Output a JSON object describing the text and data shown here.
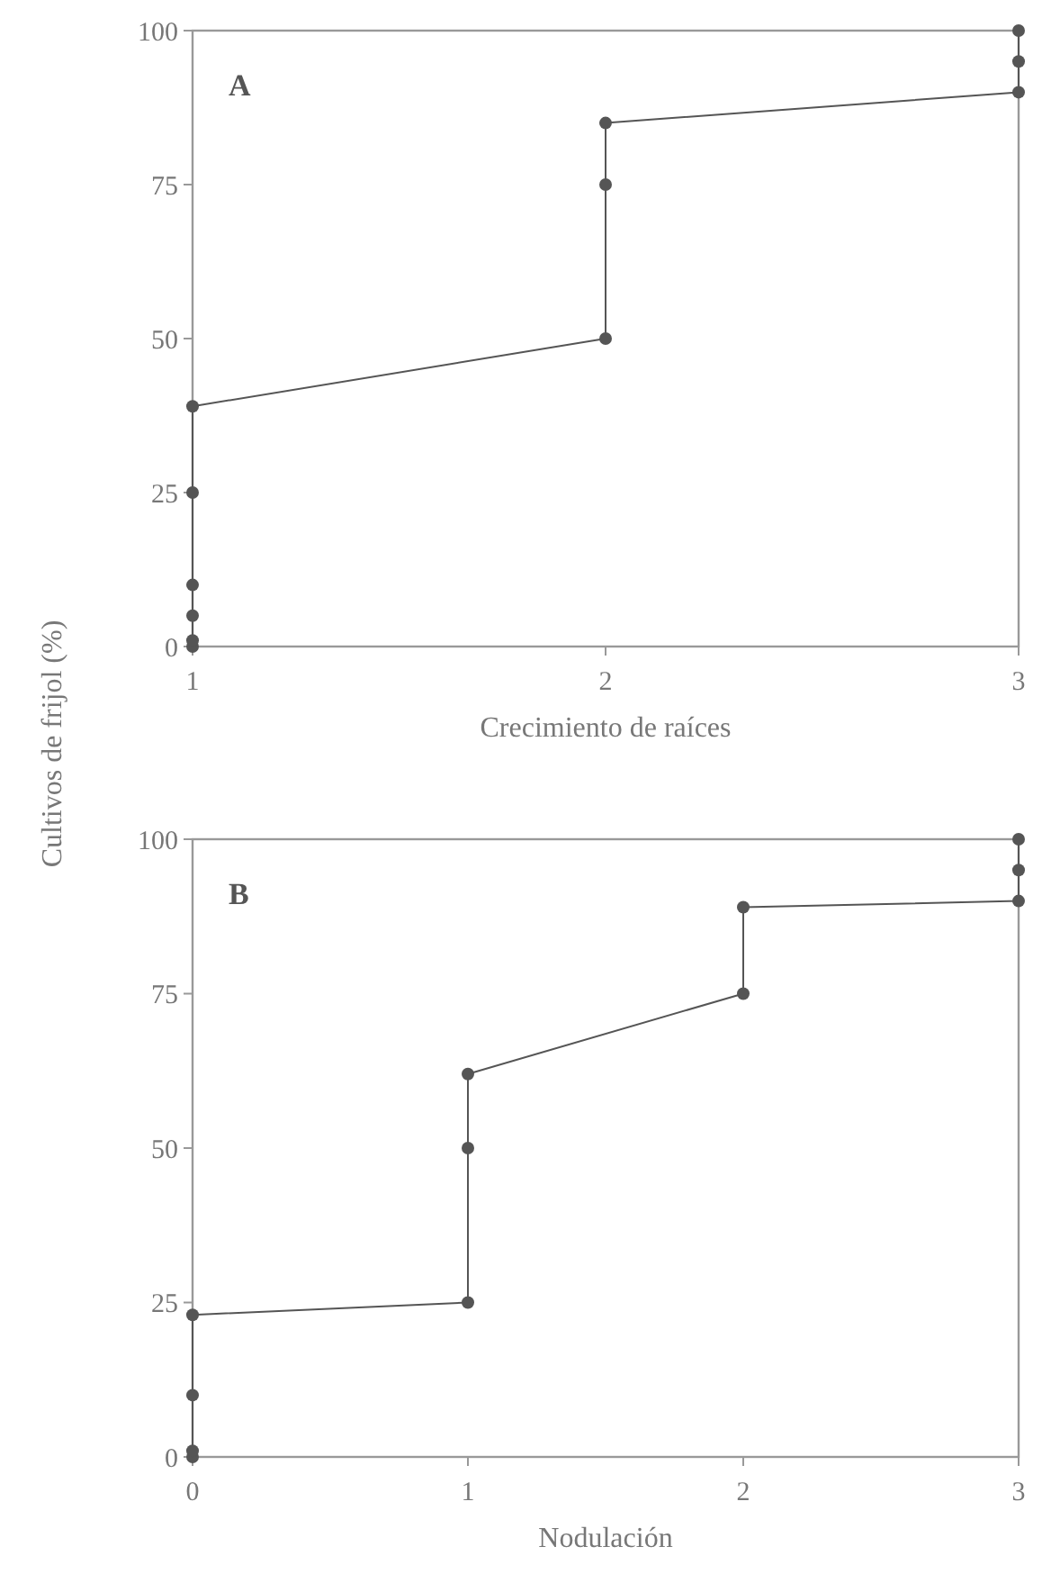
{
  "chart_data": [
    {
      "type": "line",
      "xlabel": "Crecimiento de raíces",
      "ylabel": "Cultivos de frijol (%)",
      "annotations": [
        "A"
      ],
      "marker": "circle",
      "line_style": "solid",
      "grid": false,
      "xlim": [
        1,
        3
      ],
      "xticks": [
        1,
        2,
        3
      ],
      "ylim": [
        0,
        100
      ],
      "yticks": [
        0,
        25,
        50,
        75,
        100
      ],
      "series": [
        {
          "color": "#555555",
          "x": [
            1,
            1,
            1,
            1,
            1,
            1,
            2,
            2,
            2,
            3,
            3,
            3
          ],
          "values": [
            0,
            1,
            5,
            10,
            25,
            39,
            50,
            75,
            85,
            90,
            95,
            100
          ]
        }
      ]
    },
    {
      "type": "line",
      "xlabel": "Nodulación",
      "annotations": [
        "B"
      ],
      "marker": "circle",
      "line_style": "solid",
      "grid": false,
      "xlim": [
        0,
        3
      ],
      "xticks": [
        0,
        1,
        2,
        3
      ],
      "ylim": [
        0,
        100
      ],
      "yticks": [
        0,
        25,
        50,
        75,
        100
      ],
      "series": [
        {
          "color": "#555555",
          "x": [
            0,
            0,
            0,
            0,
            1,
            1,
            1,
            2,
            2,
            3,
            3,
            3
          ],
          "values": [
            0,
            1,
            10,
            23,
            25,
            50,
            62,
            75,
            89,
            90,
            95,
            100
          ]
        }
      ]
    }
  ]
}
